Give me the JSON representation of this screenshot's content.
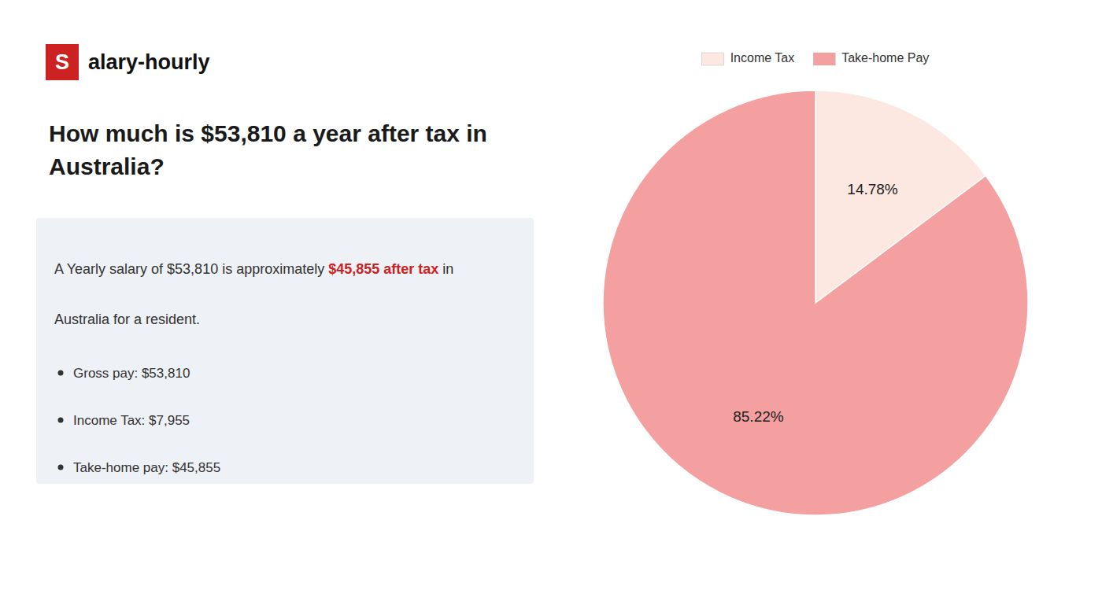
{
  "chart_data": {
    "type": "pie",
    "title": "How much is $53,810 a year after tax in\nAustralia?",
    "categories": [
      "Income Tax",
      "Take-home Pay"
    ],
    "values": [
      14.78,
      85.22
    ],
    "value_labels": [
      "14.78%",
      "85.22%"
    ],
    "colors": [
      "#fce8e0",
      "#f4a0a0"
    ],
    "data_labels": true,
    "legend": "top",
    "annotations": [
      [
        {
          "text": "S",
          "color": "#cc2222"
        },
        {
          "text": "alary-hourly"
        }
      ],
      [
        {
          "text": "A Yearly salary of $53,810 is approximately "
        },
        {
          "text": "$45,855 after tax",
          "color": "#cc2222"
        },
        {
          "text": " in"
        }
      ],
      [
        {
          "text": "Australia for a resident."
        }
      ],
      [
        {
          "text": "Gross pay: $53,810"
        }
      ],
      [
        {
          "text": "Income Tax: $7,955"
        }
      ],
      [
        {
          "text": "Take-home pay: $45,855"
        }
      ]
    ]
  }
}
